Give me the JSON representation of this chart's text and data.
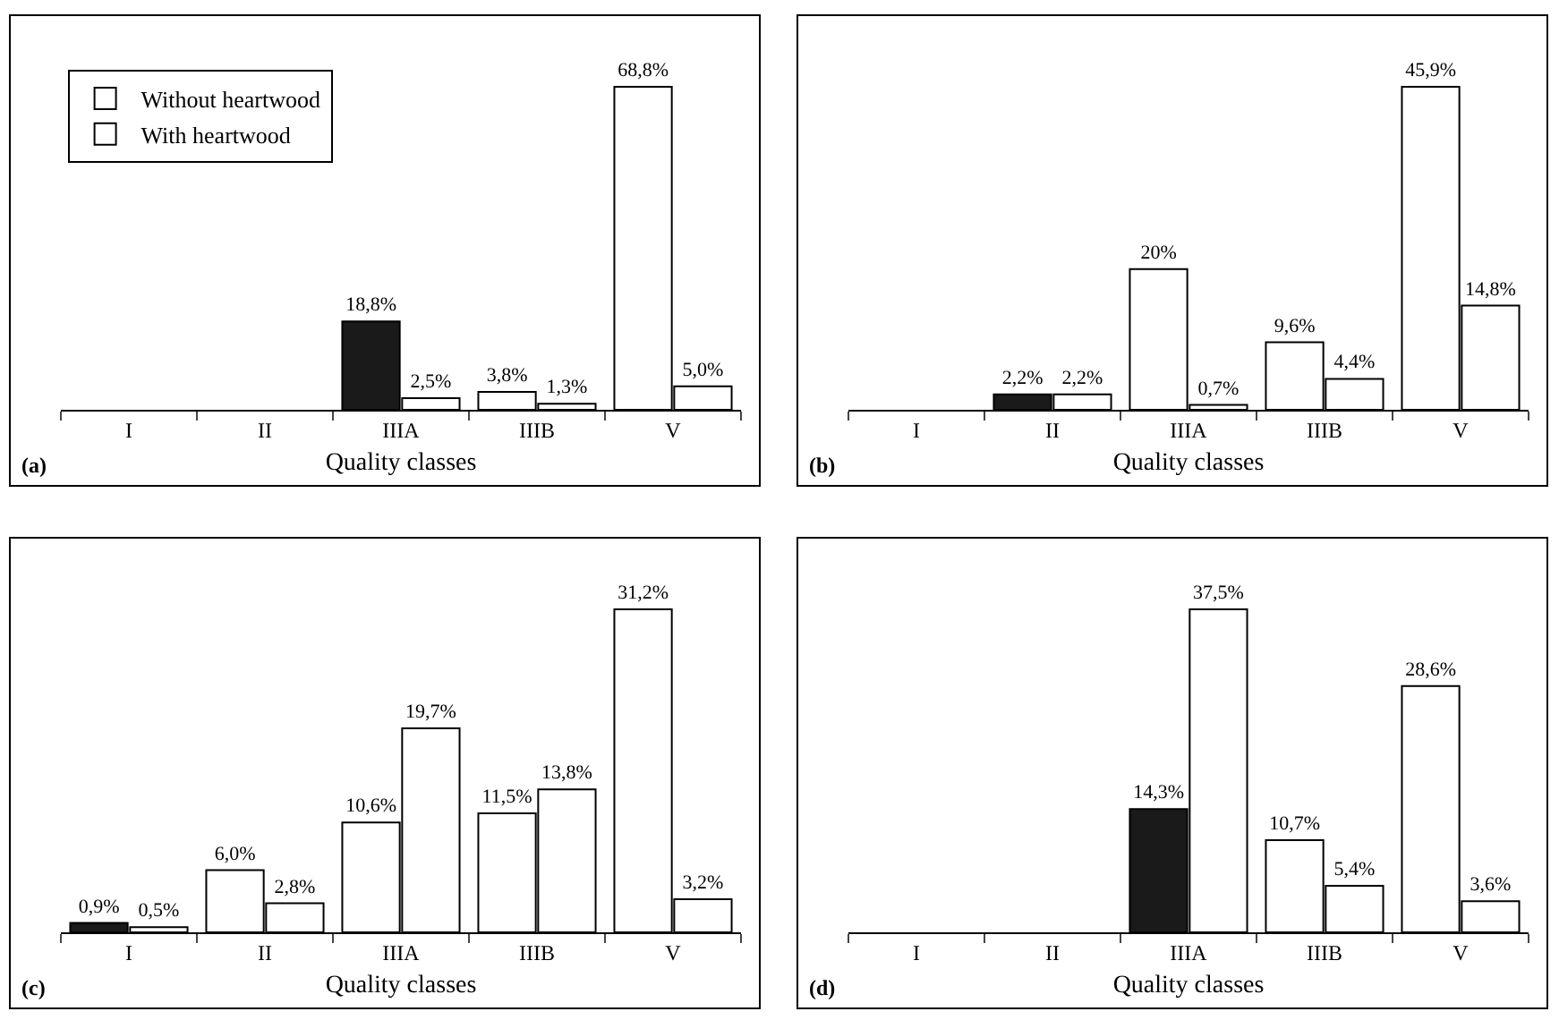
{
  "chart_data": [
    {
      "type": "bar",
      "xlabel": "Quality classes",
      "annotations": [
        "(a)"
      ],
      "legend": "top left",
      "categories": [
        "I",
        "II",
        "IIIA",
        "IIIB",
        "V"
      ],
      "series": [
        {
          "name": "Without heartwood",
          "color": "#ffffff",
          "colors": [
            null,
            null,
            "#1a1a1a",
            null,
            null
          ],
          "values": [
            null,
            null,
            18.8,
            3.8,
            68.8
          ],
          "value_labels": [
            null,
            null,
            "18,8%",
            "3,8%",
            "68,8%"
          ]
        },
        {
          "name": "With heartwood",
          "color": "#ffffff",
          "values": [
            null,
            null,
            2.5,
            1.3,
            5.0
          ],
          "value_labels": [
            null,
            null,
            "2,5%",
            "1,3%",
            "5,0%"
          ]
        }
      ]
    },
    {
      "type": "bar",
      "xlabel": "Quality classes",
      "annotations": [
        "(b)"
      ],
      "categories": [
        "I",
        "II",
        "IIIA",
        "IIIB",
        "V"
      ],
      "series": [
        {
          "color": "#ffffff",
          "colors": [
            null,
            "#1a1a1a",
            null,
            null,
            null
          ],
          "values": [
            null,
            2.2,
            20,
            9.6,
            45.9
          ],
          "value_labels": [
            null,
            "2,2%",
            "20%",
            "9,6%",
            "45,9%"
          ]
        },
        {
          "color": "#ffffff",
          "values": [
            null,
            2.2,
            0.7,
            4.4,
            14.8
          ],
          "value_labels": [
            null,
            "2,2%",
            "0,7%",
            "4,4%",
            "14,8%"
          ]
        }
      ]
    },
    {
      "type": "bar",
      "xlabel": "Quality classes",
      "annotations": [
        "(c)"
      ],
      "categories": [
        "I",
        "II",
        "IIIA",
        "IIIB",
        "V"
      ],
      "series": [
        {
          "color": "#ffffff",
          "colors": [
            "#1a1a1a",
            null,
            null,
            null,
            null
          ],
          "values": [
            0.9,
            6.0,
            10.6,
            11.5,
            31.2
          ],
          "value_labels": [
            "0,9%",
            "6,0%",
            "10,6%",
            "11,5%",
            "31,2%"
          ]
        },
        {
          "color": "#ffffff",
          "values": [
            0.5,
            2.8,
            19.7,
            13.8,
            3.2
          ],
          "value_labels": [
            "0,5%",
            "2,8%",
            "19,7%",
            "13,8%",
            "3,2%"
          ]
        }
      ]
    },
    {
      "type": "bar",
      "xlabel": "Quality classes",
      "annotations": [
        "(d)"
      ],
      "categories": [
        "I",
        "II",
        "IIIA",
        "IIIB",
        "V"
      ],
      "series": [
        {
          "color": "#ffffff",
          "colors": [
            null,
            null,
            "#1a1a1a",
            null,
            null
          ],
          "values": [
            null,
            null,
            14.3,
            10.7,
            28.6
          ],
          "value_labels": [
            null,
            null,
            "14,3%",
            "10,7%",
            "28,6%"
          ]
        },
        {
          "color": "#ffffff",
          "values": [
            null,
            null,
            37.5,
            5.4,
            3.6
          ],
          "value_labels": [
            null,
            null,
            "37,5%",
            "5,4%",
            "3,6%"
          ]
        }
      ]
    }
  ]
}
